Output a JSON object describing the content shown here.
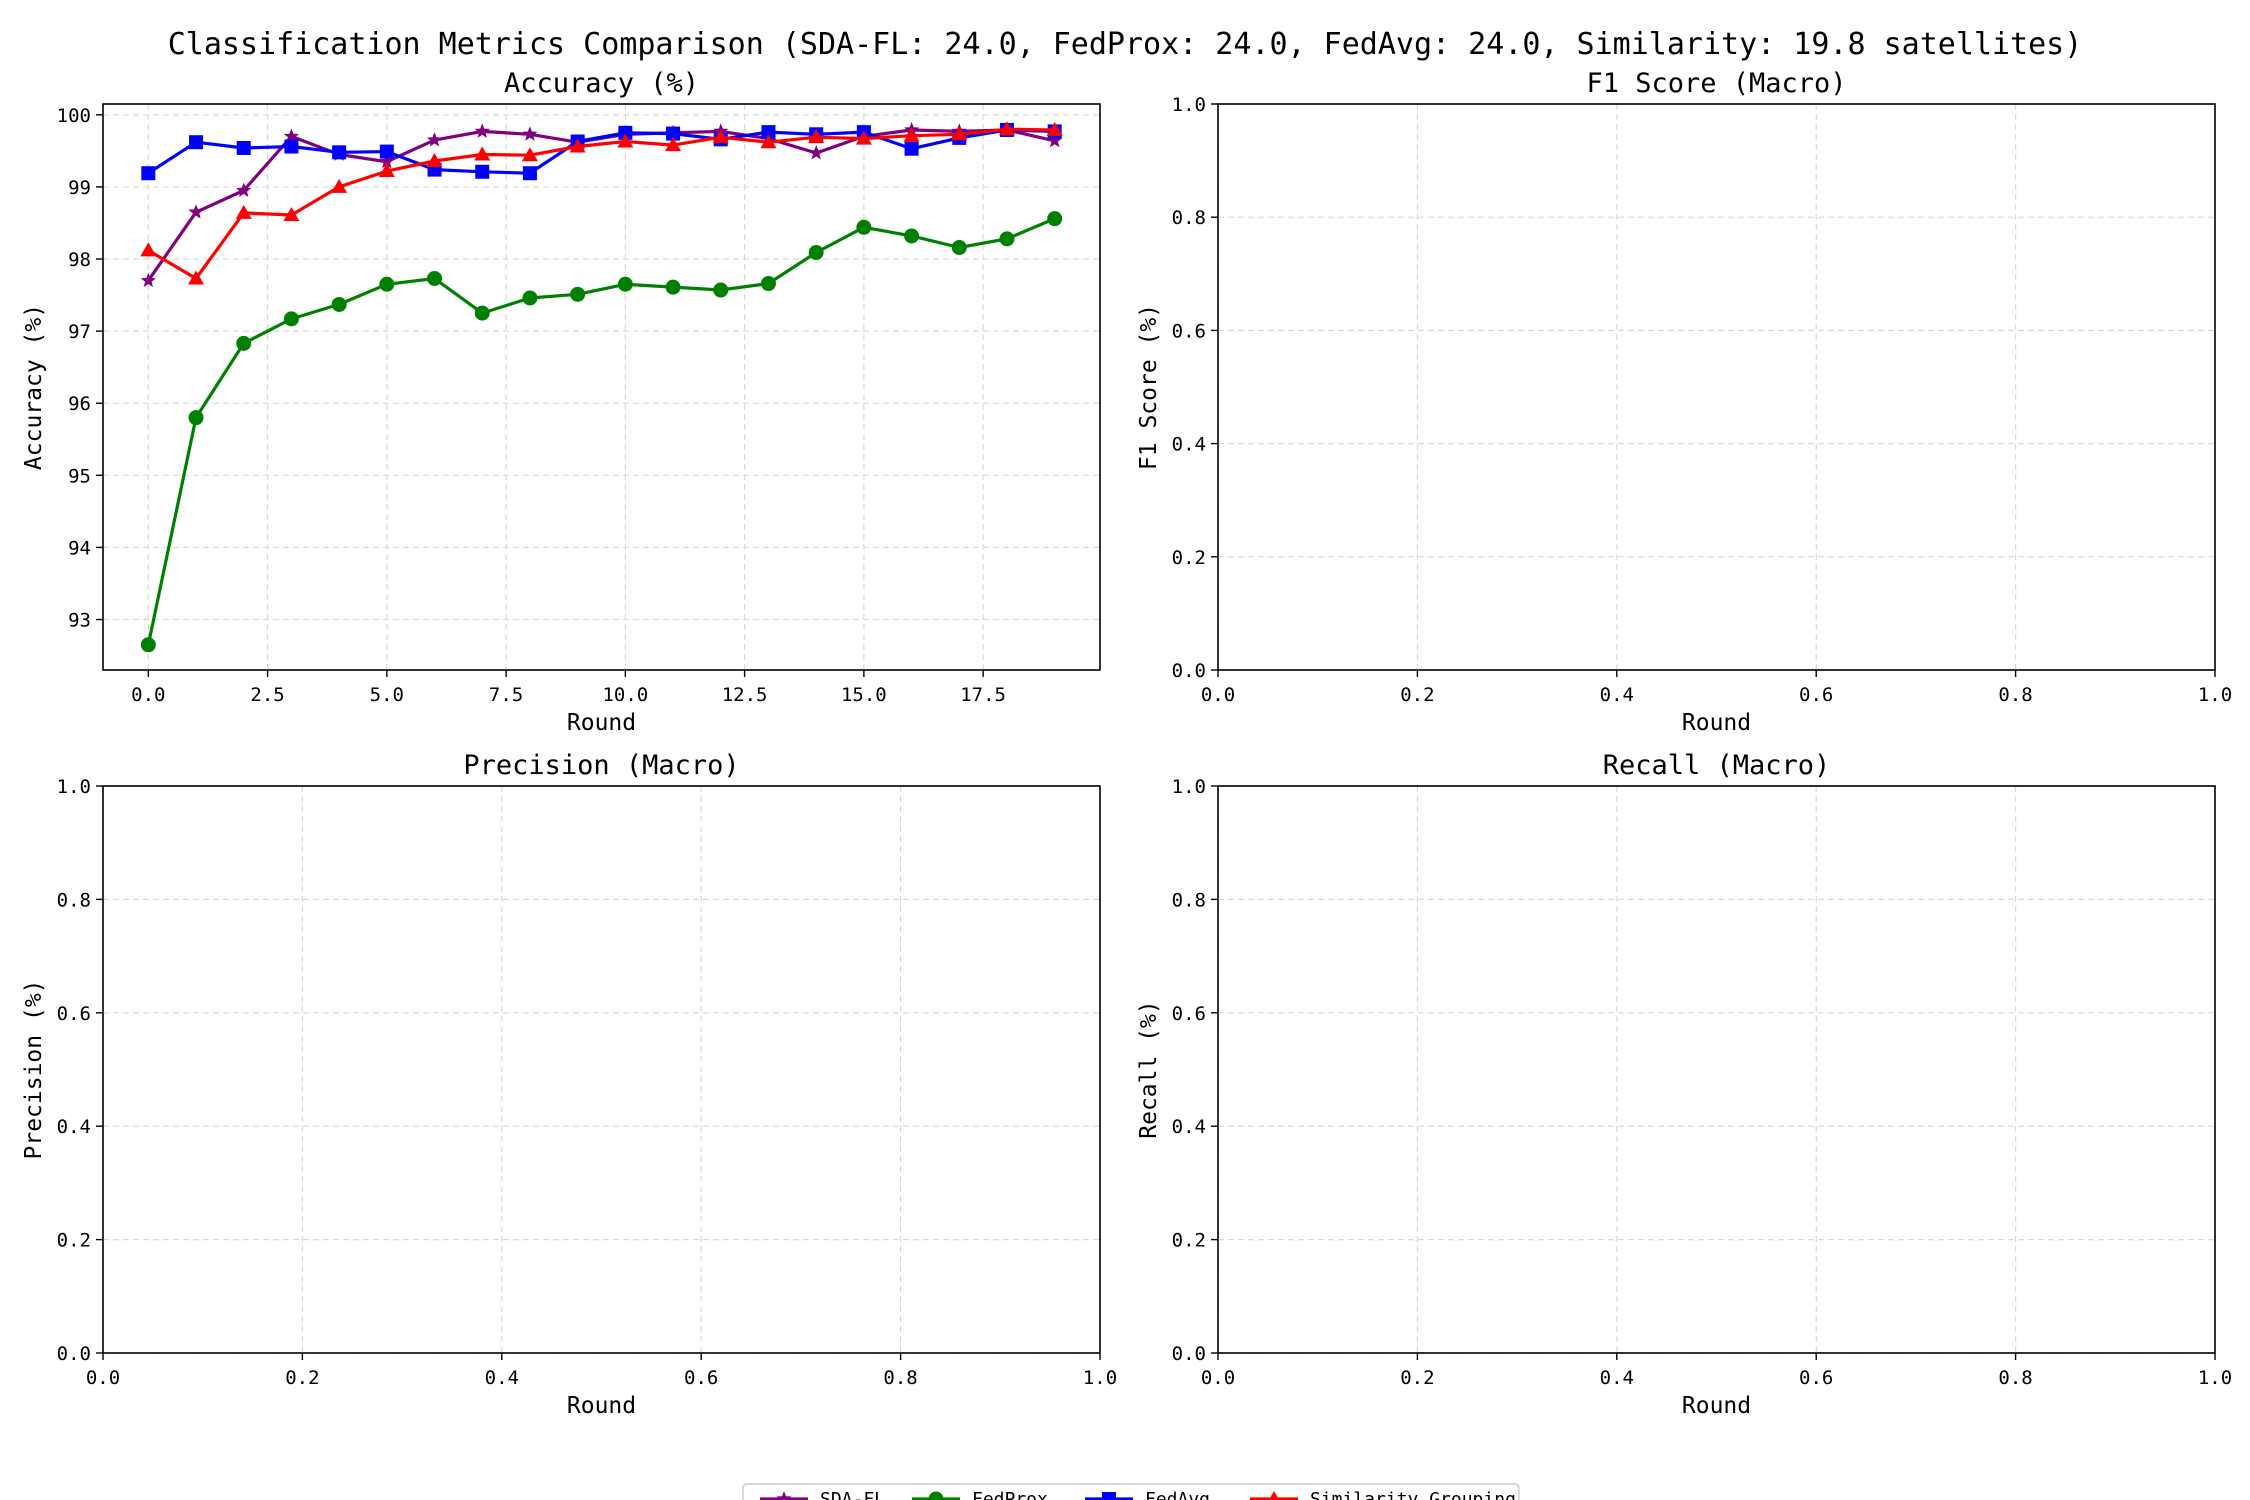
{
  "figure": {
    "title": "Classification Metrics Comparison (SDA-FL: 24.0, FedProx: 24.0, FedAvg: 24.0, Similarity: 19.8 satellites)"
  },
  "legend": {
    "placement": "bottom-center",
    "entries": [
      "SDA-FL",
      "FedProx",
      "FedAvg",
      "Similarity Grouping"
    ]
  },
  "chart_data": [
    {
      "type": "line",
      "title": "Accuracy (%)",
      "xlabel": "Round",
      "ylabel": "Accuracy (%)",
      "xlim": [
        -0.95,
        19.95
      ],
      "ylim": [
        92.3,
        100.15
      ],
      "xticks": [
        0.0,
        2.5,
        5.0,
        7.5,
        10.0,
        12.5,
        15.0,
        17.5
      ],
      "yticks": [
        93,
        94,
        95,
        96,
        97,
        98,
        99,
        100
      ],
      "xtick_labels": [
        "0.0",
        "2.5",
        "5.0",
        "7.5",
        "10.0",
        "12.5",
        "15.0",
        "17.5"
      ],
      "ytick_labels": [
        "93",
        "94",
        "95",
        "96",
        "97",
        "98",
        "99",
        "100"
      ],
      "grid": true,
      "x": [
        0,
        1,
        2,
        3,
        4,
        5,
        6,
        7,
        8,
        9,
        10,
        11,
        12,
        13,
        14,
        15,
        16,
        17,
        18,
        19
      ],
      "series": [
        {
          "name": "SDA-FL",
          "color": "#800080",
          "marker": "star",
          "values": [
            97.7,
            98.65,
            98.95,
            99.7,
            99.45,
            99.35,
            99.65,
            99.77,
            99.73,
            99.62,
            99.73,
            99.75,
            99.77,
            99.67,
            99.47,
            99.7,
            99.79,
            99.77,
            99.79,
            99.64
          ]
        },
        {
          "name": "FedProx",
          "color": "#008000",
          "marker": "circle",
          "values": [
            92.65,
            95.8,
            96.83,
            97.17,
            97.37,
            97.65,
            97.73,
            97.25,
            97.46,
            97.51,
            97.65,
            97.61,
            97.57,
            97.66,
            98.09,
            98.44,
            98.32,
            98.16,
            98.28,
            98.56
          ]
        },
        {
          "name": "FedAvg",
          "color": "#0000ff",
          "marker": "square",
          "values": [
            99.19,
            99.62,
            99.54,
            99.56,
            99.48,
            99.49,
            99.24,
            99.21,
            99.19,
            99.63,
            99.75,
            99.74,
            99.66,
            99.76,
            99.73,
            99.76,
            99.53,
            99.68,
            99.79,
            99.77
          ]
        },
        {
          "name": "Similarity Grouping",
          "color": "#ff0000",
          "marker": "triangle",
          "values": [
            98.12,
            97.73,
            98.64,
            98.61,
            99.0,
            99.22,
            99.36,
            99.45,
            99.44,
            99.56,
            99.63,
            99.58,
            99.69,
            99.62,
            99.69,
            99.67,
            99.71,
            99.73,
            99.8,
            99.79
          ]
        }
      ]
    },
    {
      "type": "line",
      "title": "F1 Score (Macro)",
      "xlabel": "Round",
      "ylabel": "F1 Score (%)",
      "xlim": [
        0,
        1
      ],
      "ylim": [
        0,
        1
      ],
      "xticks": [
        0.0,
        0.2,
        0.4,
        0.6,
        0.8,
        1.0
      ],
      "yticks": [
        0.0,
        0.2,
        0.4,
        0.6,
        0.8,
        1.0
      ],
      "xtick_labels": [
        "0.0",
        "0.2",
        "0.4",
        "0.6",
        "0.8",
        "1.0"
      ],
      "ytick_labels": [
        "0.0",
        "0.2",
        "0.4",
        "0.6",
        "0.8",
        "1.0"
      ],
      "grid": true,
      "series": []
    },
    {
      "type": "line",
      "title": "Precision (Macro)",
      "xlabel": "Round",
      "ylabel": "Precision (%)",
      "xlim": [
        0,
        1
      ],
      "ylim": [
        0,
        1
      ],
      "xticks": [
        0.0,
        0.2,
        0.4,
        0.6,
        0.8,
        1.0
      ],
      "yticks": [
        0.0,
        0.2,
        0.4,
        0.6,
        0.8,
        1.0
      ],
      "xtick_labels": [
        "0.0",
        "0.2",
        "0.4",
        "0.6",
        "0.8",
        "1.0"
      ],
      "ytick_labels": [
        "0.0",
        "0.2",
        "0.4",
        "0.6",
        "0.8",
        "1.0"
      ],
      "grid": true,
      "series": []
    },
    {
      "type": "line",
      "title": "Recall (Macro)",
      "xlabel": "Round",
      "ylabel": "Recall (%)",
      "xlim": [
        0,
        1
      ],
      "ylim": [
        0,
        1
      ],
      "xticks": [
        0.0,
        0.2,
        0.4,
        0.6,
        0.8,
        1.0
      ],
      "yticks": [
        0.0,
        0.2,
        0.4,
        0.6,
        0.8,
        1.0
      ],
      "xtick_labels": [
        "0.0",
        "0.2",
        "0.4",
        "0.6",
        "0.8",
        "1.0"
      ],
      "ytick_labels": [
        "0.0",
        "0.2",
        "0.4",
        "0.6",
        "0.8",
        "1.0"
      ],
      "grid": true,
      "series": []
    }
  ]
}
